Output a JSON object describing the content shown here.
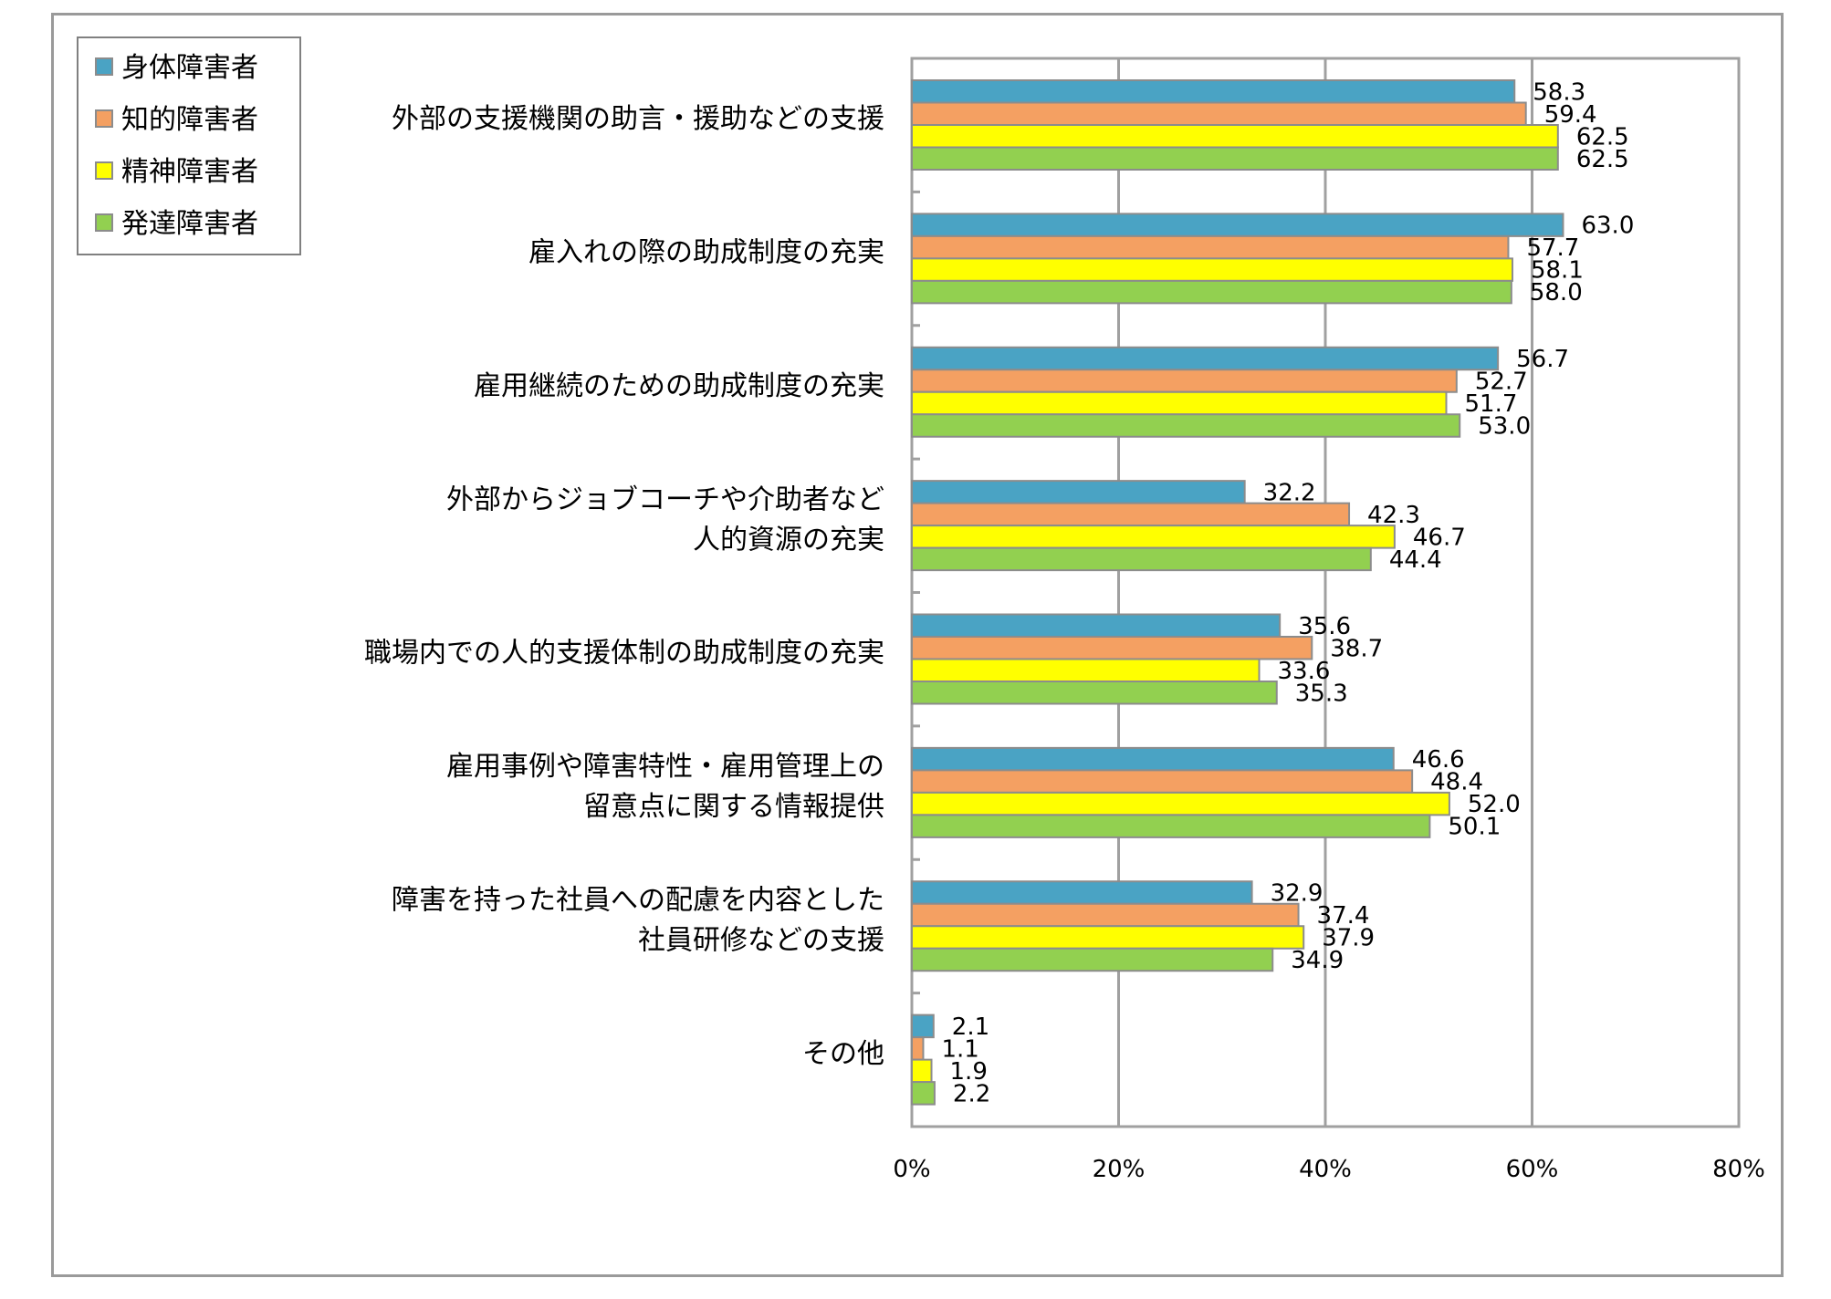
{
  "chart_data": {
    "type": "bar",
    "orientation": "horizontal",
    "categories": [
      [
        "外部の支援機関の助言・援助などの支援"
      ],
      [
        "雇入れの際の助成制度の充実"
      ],
      [
        "雇用継続のための助成制度の充実"
      ],
      [
        "外部からジョブコーチや介助者など",
        "人的資源の充実"
      ],
      [
        "職場内での人的支援体制の助成制度の充実"
      ],
      [
        "雇用事例や障害特性・雇用管理上の",
        "留意点に関する情報提供"
      ],
      [
        "障害を持った社員への配慮を内容とした",
        "社員研修などの支援"
      ],
      [
        "その他"
      ]
    ],
    "series": [
      {
        "name": "身体障害者",
        "color": "#4aa3c4",
        "values": [
          58.3,
          63.0,
          56.7,
          32.2,
          35.6,
          46.6,
          32.9,
          2.1
        ],
        "labels": [
          "58.3",
          "63.0",
          "56.7",
          "32.2",
          "35.6",
          "46.6",
          "32.9",
          "2.1"
        ]
      },
      {
        "name": "知的障害者",
        "color": "#f4a062",
        "values": [
          59.4,
          57.7,
          52.7,
          42.3,
          38.7,
          48.4,
          37.4,
          1.1
        ],
        "labels": [
          "59.4",
          "57.7",
          "52.7",
          "42.3",
          "38.7",
          "48.4",
          "37.4",
          "1.1"
        ]
      },
      {
        "name": "精神障害者",
        "color": "#ffff00",
        "values": [
          62.5,
          58.1,
          51.7,
          46.7,
          33.6,
          52.0,
          37.9,
          1.9
        ],
        "labels": [
          "62.5",
          "58.1",
          "51.7",
          "46.7",
          "33.6",
          "52.0",
          "37.9",
          "1.9"
        ]
      },
      {
        "name": "発達障害者",
        "color": "#92d050",
        "values": [
          62.5,
          58.0,
          53.0,
          44.4,
          35.3,
          50.1,
          34.9,
          2.2
        ],
        "labels": [
          "62.5",
          "58.0",
          "53.0",
          "44.4",
          "35.3",
          "50.1",
          "34.9",
          "2.2"
        ]
      }
    ],
    "xlim": [
      0,
      80
    ],
    "xticks": [
      0,
      20,
      40,
      60,
      80
    ],
    "xtick_labels": [
      "0%",
      "20%",
      "40%",
      "60%",
      "80%"
    ],
    "grid": true,
    "legend_position": "top-left"
  }
}
